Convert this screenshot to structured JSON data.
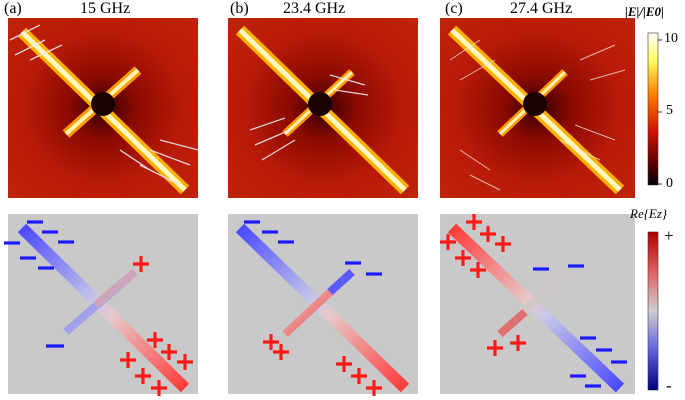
{
  "panels": [
    {
      "label": "(a)",
      "freq": "15 GHz"
    },
    {
      "label": "(b)",
      "freq": "23.4 GHz"
    },
    {
      "label": "(c)",
      "freq": "27.4 GHz"
    }
  ],
  "colorbar_top": {
    "title": "|E|/|E0|",
    "ticks": [
      "10",
      "5",
      "0"
    ]
  },
  "colorbar_bottom": {
    "title": "Re{Ez}",
    "plus": "+",
    "minus": "-"
  },
  "colors": {
    "positive": "#ff1a1a",
    "negative": "#1a1aff",
    "substrate": "#c9c9c9"
  }
}
